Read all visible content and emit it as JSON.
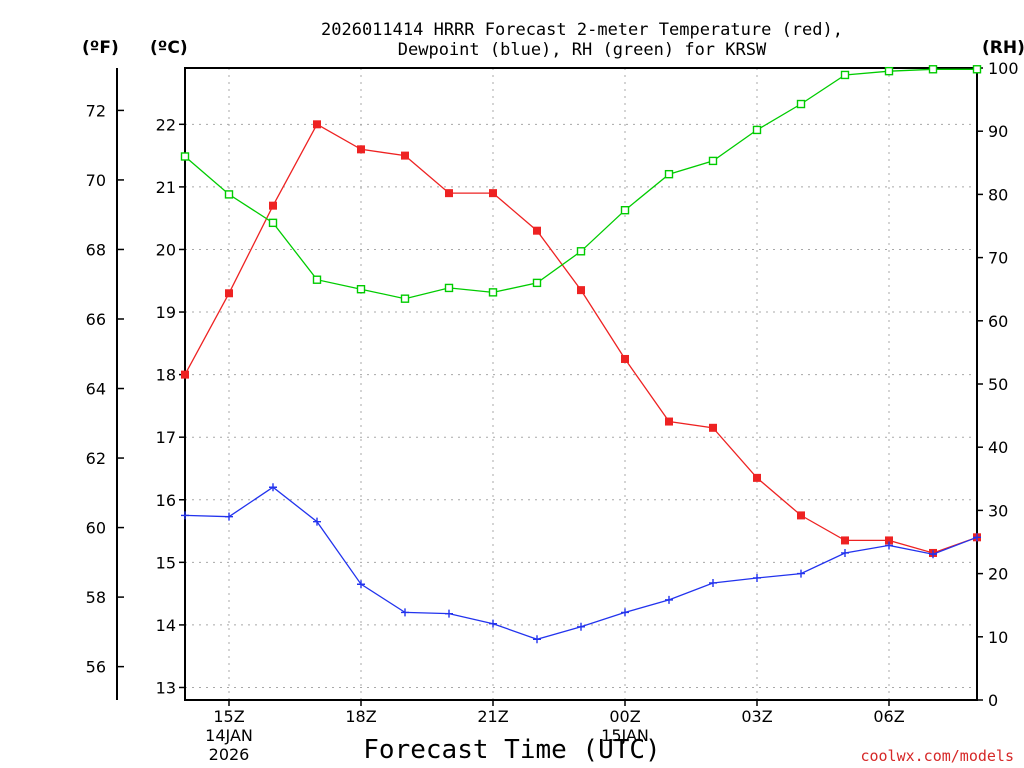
{
  "title": {
    "line1": "2026011414 HRRR Forecast 2-meter Temperature (red),",
    "line2": "Dewpoint (blue), RH (green) for KRSW"
  },
  "units": {
    "fahrenheit": "(ºF)",
    "celsius": "(ºC)",
    "rh": "(RH)"
  },
  "credit": "coolwx.com/models",
  "colors": {
    "temperature": "#ee2222",
    "dewpoint": "#2233ee",
    "rh": "#00cc00"
  },
  "chart_data": {
    "type": "line",
    "title": "2026011414 HRRR Forecast 2-meter Temperature (red), Dewpoint (blue), RH (green) for KRSW",
    "xlabel": "Forecast Time (UTC)",
    "x_hours": [
      14,
      15,
      16,
      17,
      18,
      19,
      20,
      21,
      22,
      23,
      24,
      25,
      26,
      27,
      28,
      29,
      30,
      31,
      32
    ],
    "xlim": [
      14,
      32
    ],
    "x_ticks": [
      {
        "hour": 15,
        "label": "15Z",
        "sub1": "14JAN",
        "sub2": "2026"
      },
      {
        "hour": 18,
        "label": "18Z",
        "sub1": "",
        "sub2": ""
      },
      {
        "hour": 21,
        "label": "21Z",
        "sub1": "",
        "sub2": ""
      },
      {
        "hour": 24,
        "label": "00Z",
        "sub1": "15JAN",
        "sub2": ""
      },
      {
        "hour": 27,
        "label": "03Z",
        "sub1": "",
        "sub2": ""
      },
      {
        "hour": 30,
        "label": "06Z",
        "sub1": "",
        "sub2": ""
      }
    ],
    "y_left_f": {
      "label": "(ºF)",
      "ticks": [
        56,
        58,
        60,
        62,
        64,
        66,
        68,
        70,
        72
      ]
    },
    "y_left_c": {
      "label": "(ºC)",
      "range": [
        12.8,
        22.9
      ],
      "ticks": [
        13,
        14,
        15,
        16,
        17,
        18,
        19,
        20,
        21,
        22
      ]
    },
    "y_right": {
      "label": "(RH)",
      "range": [
        0,
        100
      ],
      "ticks": [
        0,
        10,
        20,
        30,
        40,
        50,
        60,
        70,
        80,
        90,
        100
      ]
    },
    "series": [
      {
        "name": "Temperature",
        "axis": "celsius",
        "color": "#ee2222",
        "marker": "filled-square",
        "values": [
          18.0,
          19.3,
          20.7,
          22.0,
          21.6,
          21.5,
          20.9,
          20.9,
          20.3,
          19.35,
          18.25,
          17.25,
          17.15,
          16.35,
          15.75,
          15.35,
          15.35,
          15.15,
          15.4
        ]
      },
      {
        "name": "Dewpoint",
        "axis": "celsius",
        "color": "#2233ee",
        "marker": "plus",
        "values": [
          15.75,
          15.73,
          16.2,
          15.65,
          14.65,
          14.2,
          14.18,
          14.02,
          13.77,
          13.97,
          14.2,
          14.4,
          14.67,
          14.75,
          14.82,
          15.15,
          15.27,
          15.13,
          15.4
        ]
      },
      {
        "name": "RH",
        "axis": "rh",
        "color": "#00cc00",
        "marker": "open-square",
        "values": [
          86,
          80,
          75.5,
          66.5,
          65,
          63.5,
          65.2,
          64.5,
          66,
          71,
          77.5,
          83.2,
          85.3,
          90.2,
          94.3,
          98.9,
          99.5,
          99.8,
          99.8
        ]
      }
    ]
  }
}
